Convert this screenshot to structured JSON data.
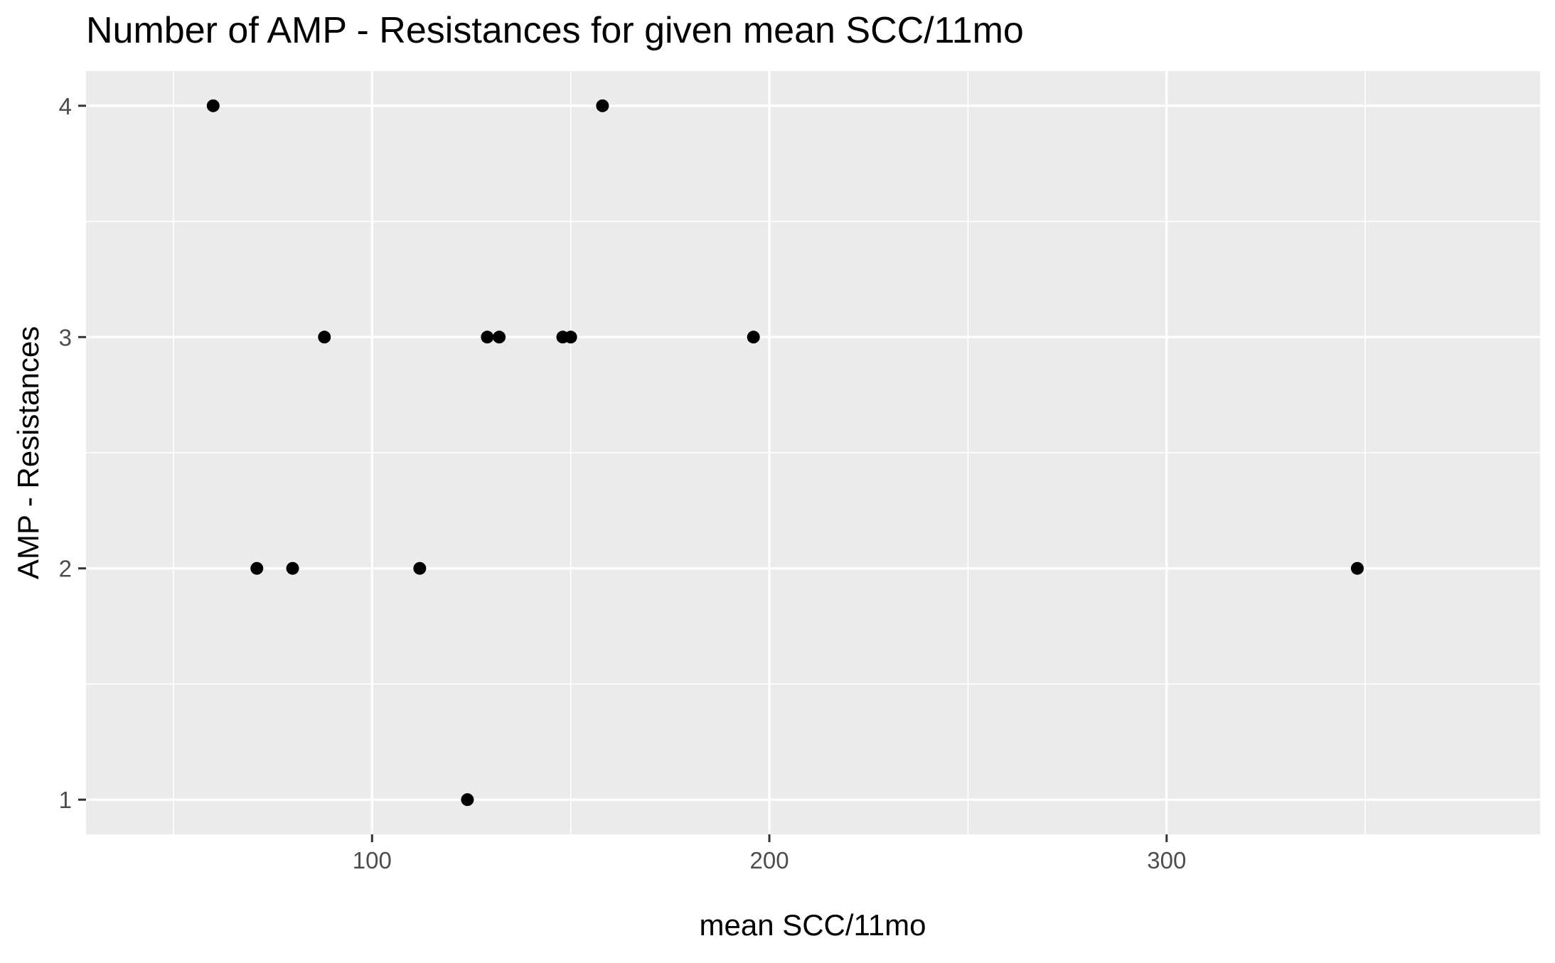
{
  "chart_data": {
    "type": "scatter",
    "title": "Number of AMP - Resistances for given mean SCC/11mo",
    "xlabel": "mean SCC/11mo",
    "ylabel": "AMP - Resistances",
    "xlim": [
      28,
      394
    ],
    "ylim": [
      0.85,
      4.15
    ],
    "x_ticks": [
      100,
      200,
      300
    ],
    "x_minor_ticks": [
      50,
      150,
      250,
      350
    ],
    "y_ticks": [
      1,
      2,
      3,
      4
    ],
    "y_minor_ticks": [
      1.5,
      2.5,
      3.5
    ],
    "grid": true,
    "legend": "none",
    "point_color": "#000000",
    "panel_color": "#ebebeb",
    "points": [
      {
        "x": 60,
        "y": 4
      },
      {
        "x": 158,
        "y": 4
      },
      {
        "x": 88,
        "y": 3
      },
      {
        "x": 129,
        "y": 3
      },
      {
        "x": 132,
        "y": 3
      },
      {
        "x": 148,
        "y": 3
      },
      {
        "x": 150,
        "y": 3
      },
      {
        "x": 196,
        "y": 3
      },
      {
        "x": 71,
        "y": 2
      },
      {
        "x": 80,
        "y": 2
      },
      {
        "x": 112,
        "y": 2
      },
      {
        "x": 348,
        "y": 2
      },
      {
        "x": 124,
        "y": 1
      }
    ]
  }
}
